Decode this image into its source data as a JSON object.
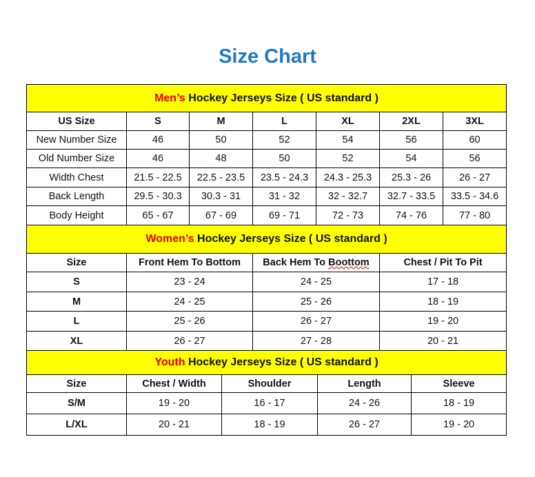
{
  "title": "Size Chart",
  "colors": {
    "title": "#1f78c8",
    "section_bg": "#ffff00",
    "highlight": "#e00000"
  },
  "men": {
    "highlight": "Men’s",
    "heading": " Hockey Jerseys Size ( US standard )",
    "headers": [
      "US Size",
      "S",
      "M",
      "L",
      "XL",
      "2XL",
      "3XL"
    ],
    "rows": [
      [
        "New Number Size",
        "46",
        "50",
        "52",
        "54",
        "56",
        "60"
      ],
      [
        "Old Number Size",
        "46",
        "48",
        "50",
        "52",
        "54",
        "56"
      ],
      [
        "Width Chest",
        "21.5 - 22.5",
        "22.5 - 23.5",
        "23.5 - 24.3",
        "24.3 - 25.3",
        "25.3 - 26",
        "26 - 27"
      ],
      [
        "Back Length",
        "29.5 - 30.3",
        "30.3 - 31",
        "31 - 32",
        "32 - 32.7",
        "32.7 - 33.5",
        "33.5 - 34.6"
      ],
      [
        "Body Height",
        "65 - 67",
        "67 - 69",
        "69 - 71",
        "72 - 73",
        "74 - 76",
        "77 - 80"
      ]
    ]
  },
  "women": {
    "highlight": "Women’s",
    "heading": " Hockey Jerseys Size ( US standard )",
    "headers": [
      "Size",
      "Front Hem To Bottom",
      "Back Hem To Boottom",
      "Chest / Pit To Pit"
    ],
    "rows": [
      [
        "S",
        "23 - 24",
        "24 - 25",
        "17 - 18"
      ],
      [
        "M",
        "24 - 25",
        "25 - 26",
        "18 - 19"
      ],
      [
        "L",
        "25 - 26",
        "26 - 27",
        "19 - 20"
      ],
      [
        "XL",
        "26 - 27",
        "27 - 28",
        "20 - 21"
      ]
    ]
  },
  "youth": {
    "highlight": "Youth",
    "heading": " Hockey Jerseys Size ( US standard )",
    "headers": [
      "Size",
      "Chest / Width",
      "Shoulder",
      "Length",
      "Sleeve"
    ],
    "rows": [
      [
        "S/M",
        "19 - 20",
        "16 - 17",
        "24 - 26",
        "18 - 19"
      ],
      [
        "L/XL",
        "20 - 21",
        "18 - 19",
        "26 - 27",
        "19 - 20"
      ]
    ]
  }
}
